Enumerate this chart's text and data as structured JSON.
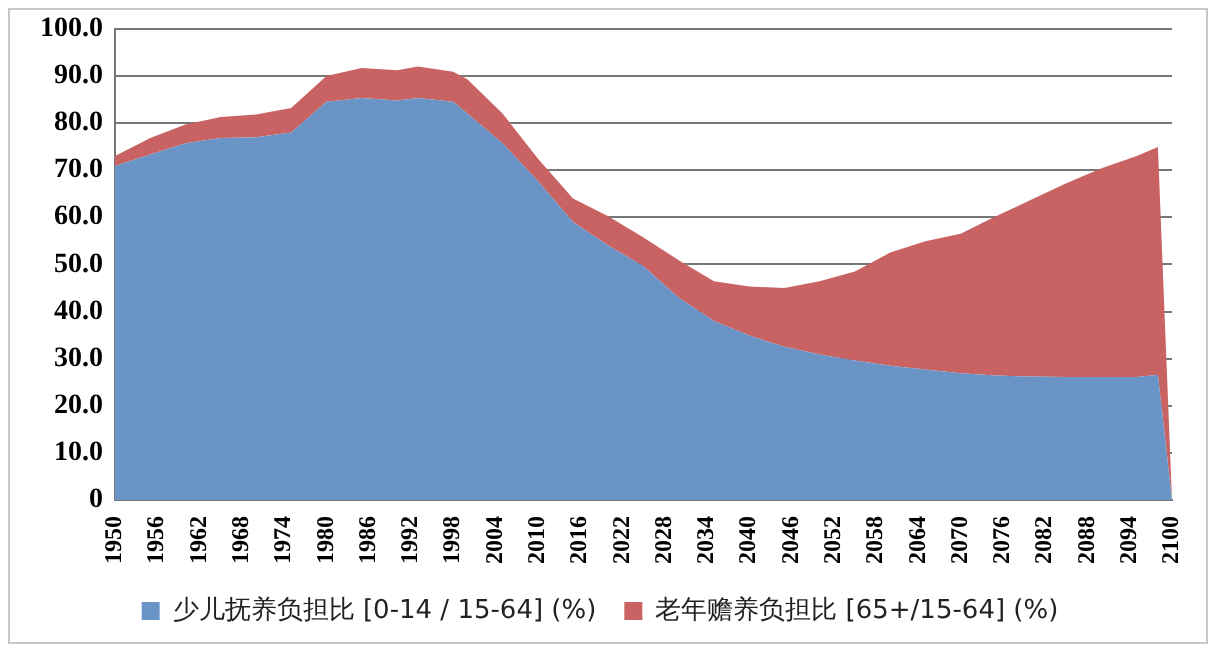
{
  "chart_data": {
    "type": "area",
    "stacked": true,
    "grid": "y",
    "legend": "bottom",
    "x": [
      1950,
      1955,
      1960,
      1965,
      1970,
      1975,
      1980,
      1985,
      1990,
      1993,
      1998,
      2000,
      2005,
      2010,
      2015,
      2020,
      2025,
      2030,
      2035,
      2040,
      2045,
      2050,
      2055,
      2060,
      2065,
      2070,
      2075,
      2080,
      2085,
      2090,
      2095,
      2098,
      2100
    ],
    "xlim": [
      1950,
      2100
    ],
    "xticks": [
      1950,
      1956,
      1962,
      1968,
      1974,
      1980,
      1986,
      1992,
      1998,
      2004,
      2010,
      2016,
      2022,
      2028,
      2034,
      2040,
      2046,
      2052,
      2058,
      2064,
      2070,
      2076,
      2082,
      2088,
      2094,
      2100
    ],
    "ylim": [
      0,
      100
    ],
    "yticks": [
      0,
      {
        "value": 10,
        "label": "10.0"
      },
      {
        "value": 20,
        "label": "20.0"
      },
      {
        "value": 30,
        "label": "30.0"
      },
      {
        "value": 40,
        "label": "40.0"
      },
      {
        "value": 50,
        "label": "50.0"
      },
      {
        "value": 60,
        "label": "60.0"
      },
      {
        "value": 70,
        "label": "70.0"
      },
      {
        "value": 80,
        "label": "80.0"
      },
      {
        "value": 90,
        "label": "90.0"
      },
      {
        "value": 100,
        "label": "100.0"
      }
    ],
    "series": [
      {
        "name": "少儿抚养负担比 [0-14 / 15-64] (%)",
        "color": "#6a93c6",
        "values": [
          70.9,
          73.3,
          75.7,
          76.8,
          77,
          78,
          84.5,
          85.3,
          84.8,
          85.3,
          84.5,
          82,
          75.7,
          67.7,
          59,
          54,
          49.6,
          42.9,
          38,
          34.9,
          32.5,
          30.9,
          29.6,
          28.5,
          27.7,
          26.9,
          26.4,
          26.2,
          26.1,
          26.1,
          26.1,
          26.6,
          0
        ]
      },
      {
        "name": "老年赡养负担比 [65+/15-64] (%)",
        "color": "#c96363",
        "values": [
          2.1,
          3.5,
          4,
          4.5,
          4.8,
          5.2,
          5.5,
          6.4,
          6.4,
          6.7,
          6.4,
          7.3,
          6.3,
          4.8,
          5,
          6.2,
          6.1,
          8,
          8.4,
          10.4,
          12.5,
          15.5,
          18.9,
          24,
          27.2,
          29.6,
          33.8,
          37.5,
          41.1,
          44.3,
          46.9,
          48.3,
          0
        ]
      }
    ]
  }
}
